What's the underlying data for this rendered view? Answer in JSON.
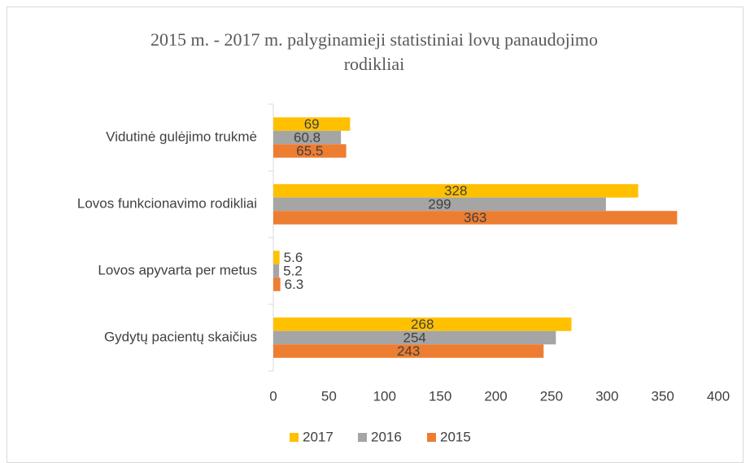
{
  "chart_data": {
    "type": "bar",
    "orientation": "horizontal",
    "title": "2015 m. - 2017 m. palyginamieji statistiniai lovų panaudojimo rodikliai",
    "categories": [
      "Vidutinė gulėjimo trukmė",
      "Lovos funkcionavimo rodikliai",
      "Lovos apyvarta per metus",
      "Gydytų pacientų skaičius"
    ],
    "series": [
      {
        "name": "2017",
        "color": "#FFC000",
        "values": [
          69,
          328,
          5.6,
          268
        ]
      },
      {
        "name": "2016",
        "color": "#A5A5A5",
        "values": [
          60.8,
          299,
          5.2,
          254
        ]
      },
      {
        "name": "2015",
        "color": "#ED7D31",
        "values": [
          65.5,
          363,
          6.3,
          243
        ]
      }
    ],
    "xlim": [
      0,
      400
    ],
    "xticks": [
      0,
      50,
      100,
      150,
      200,
      250,
      300,
      350,
      400
    ],
    "grid": false,
    "legend": "bottom"
  }
}
